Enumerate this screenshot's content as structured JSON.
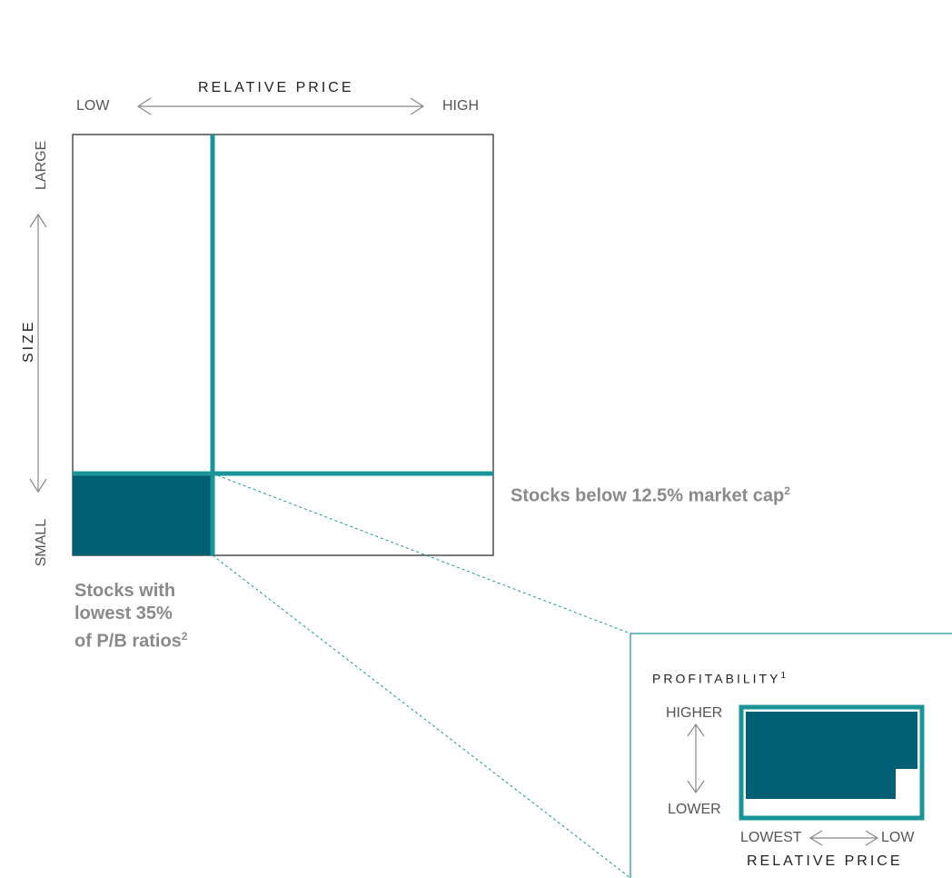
{
  "main": {
    "x_axis": {
      "title": "RELATIVE PRICE",
      "low": "LOW",
      "high": "HIGH"
    },
    "y_axis": {
      "title": "SIZE",
      "top": "LARGE",
      "bottom": "SMALL"
    }
  },
  "notes": {
    "market_cap": "Stocks below 12.5% market cap",
    "market_cap_sup": "2",
    "pb_line1": "Stocks with",
    "pb_line2": "lowest 35%",
    "pb_line3": "of P/B ratios",
    "pb_sup": "2"
  },
  "inset": {
    "title": "PROFITABILITY",
    "title_sup": "1",
    "higher": "HIGHER",
    "lower": "LOWER",
    "lowest": "LOWEST",
    "low": "LOW",
    "x_title": "RELATIVE PRICE"
  },
  "colors": {
    "teal": "#1a9597",
    "dark_teal": "#005f73",
    "gray_text": "#8a8a8a",
    "border": "#222222"
  }
}
